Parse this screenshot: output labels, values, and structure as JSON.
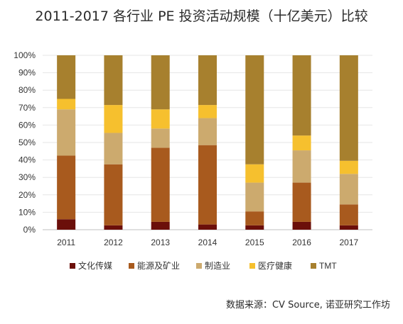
{
  "title": "2011-2017 各行业 PE 投资活动规模（十亿美元）比较",
  "source": "数据来源：CV Source, 诺亚研究工作坊",
  "chart_data": {
    "type": "bar",
    "stacked": true,
    "percent": true,
    "title": "2011-2017 各行业 PE 投资活动规模（十亿美元）比较",
    "xlabel": "",
    "ylabel": "",
    "ylim": [
      0,
      100
    ],
    "y_ticks": [
      "0%",
      "10%",
      "20%",
      "30%",
      "40%",
      "50%",
      "60%",
      "70%",
      "80%",
      "90%",
      "100%"
    ],
    "categories": [
      "2011",
      "2012",
      "2013",
      "2014",
      "2015",
      "2016",
      "2017"
    ],
    "grid": true,
    "legend_position": "bottom",
    "series": [
      {
        "name": "文化传媒",
        "color": "#6b0f0a",
        "values": [
          6,
          2.5,
          4.5,
          3,
          2.5,
          4.5,
          2.5
        ]
      },
      {
        "name": "能源及矿业",
        "color": "#a85a1e",
        "values": [
          36.5,
          35,
          42.5,
          45.5,
          8,
          22.5,
          12
        ]
      },
      {
        "name": "制造业",
        "color": "#ccaa6e",
        "values": [
          26.5,
          18,
          11,
          15.5,
          16.5,
          18.5,
          17.5
        ]
      },
      {
        "name": "医疗健康",
        "color": "#f6c02e",
        "values": [
          6,
          16,
          11,
          7.5,
          10.5,
          8.5,
          7.5
        ]
      },
      {
        "name": "TMT",
        "color": "#a7802e",
        "values": [
          25,
          28.5,
          31,
          28.5,
          62.5,
          46,
          60.5
        ]
      }
    ]
  }
}
